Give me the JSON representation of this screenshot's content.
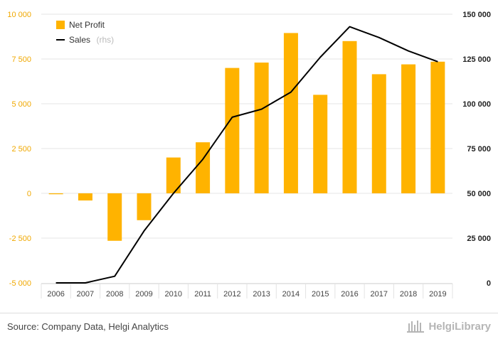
{
  "chart_data": {
    "type": "bar",
    "categories": [
      "2006",
      "2007",
      "2008",
      "2009",
      "2010",
      "2011",
      "2012",
      "2013",
      "2014",
      "2015",
      "2016",
      "2017",
      "2018",
      "2019"
    ],
    "series": [
      {
        "name": "Net Profit",
        "type": "bar",
        "axis": "left",
        "color": "#ffb300",
        "values": [
          -50,
          -400,
          -2650,
          -1500,
          2000,
          2850,
          7000,
          7300,
          8950,
          5500,
          8500,
          6650,
          7200,
          7350
        ]
      },
      {
        "name": "Sales",
        "name_suffix": "(rhs)",
        "type": "line",
        "axis": "right",
        "color": "#000000",
        "values": [
          0,
          0,
          3700,
          29000,
          50000,
          69000,
          92500,
          97000,
          106500,
          126000,
          143000,
          137000,
          129500,
          123500
        ]
      }
    ],
    "ylim_left": [
      -5000,
      10000
    ],
    "yticks_left": [
      -5000,
      -2500,
      0,
      2500,
      5000,
      7500,
      10000
    ],
    "yticklabels_left": [
      "-5 000",
      "-2 500",
      "0",
      "2 500",
      "5 000",
      "7 500",
      "10 000"
    ],
    "ylim_right": [
      0,
      150000
    ],
    "yticks_right": [
      0,
      25000,
      50000,
      75000,
      100000,
      125000,
      150000
    ],
    "yticklabels_right": [
      "0",
      "25 000",
      "50 000",
      "75 000",
      "100 000",
      "125 000",
      "150 000"
    ],
    "grid": true,
    "legend_position": "top-left",
    "title": "",
    "xlabel": "",
    "ylabel": ""
  },
  "footer": {
    "source": "Source: Company Data, Helgi Analytics",
    "logo_text": "HelgiLibrary"
  },
  "colors": {
    "bar": "#ffb300",
    "line": "#000000",
    "grid": "#e6e6e6",
    "left_axis_text": "#f0a800"
  }
}
